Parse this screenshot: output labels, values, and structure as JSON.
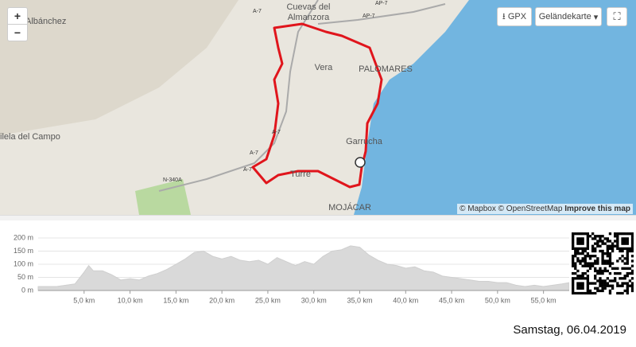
{
  "map": {
    "places": [
      "Albánchez",
      "Cuevas del",
      "Almanzora",
      "Vera",
      "Garrucha",
      "ilela del Campo",
      "Turre",
      "PALOMARES",
      "MOJÁCAR"
    ],
    "roads": [
      "A-7",
      "AP-7",
      "AP-7",
      "A-7",
      "A-7",
      "A-7",
      "N-340A"
    ],
    "zoom_in": "+",
    "zoom_out": "−",
    "gpx_button": "GPX",
    "map_type_button": "Geländekarte",
    "attribution": [
      "© Mapbox",
      "© OpenStreetMap",
      "Improve this map"
    ]
  },
  "elevation": {
    "yticks": [
      {
        "value": 0,
        "label": "0 m"
      },
      {
        "value": 50,
        "label": "50 m"
      },
      {
        "value": 100,
        "label": "100 m"
      },
      {
        "value": 150,
        "label": "150 m"
      },
      {
        "value": 200,
        "label": "200 m"
      }
    ],
    "xticks": [
      {
        "value": 5,
        "label": "5,0 km"
      },
      {
        "value": 10,
        "label": "10,0 km"
      },
      {
        "value": 15,
        "label": "15,0 km"
      },
      {
        "value": 20,
        "label": "20,0 km"
      },
      {
        "value": 25,
        "label": "25,0 km"
      },
      {
        "value": 30,
        "label": "30,0 km"
      },
      {
        "value": 35,
        "label": "35,0 km"
      },
      {
        "value": 40,
        "label": "40,0 km"
      },
      {
        "value": 45,
        "label": "45,0 km"
      },
      {
        "value": 50,
        "label": "50,0 km"
      },
      {
        "value": 55,
        "label": "55,0 km"
      }
    ],
    "xlim": [
      0,
      57.8
    ],
    "ylim": [
      0,
      200
    ],
    "x": [
      0,
      2,
      4,
      5,
      5.5,
      6,
      7,
      8,
      9,
      10,
      11,
      12,
      13,
      14,
      15,
      16,
      17,
      18,
      19,
      20,
      21,
      22,
      23,
      24,
      25,
      26,
      27,
      28,
      29,
      30,
      31,
      32,
      33,
      34,
      35,
      36,
      37,
      38,
      39,
      40,
      41,
      42,
      43,
      44,
      45,
      46,
      47,
      48,
      49,
      50,
      51,
      52,
      53,
      54,
      55,
      56,
      57,
      57.8
    ],
    "values": [
      15,
      15,
      25,
      70,
      95,
      75,
      75,
      60,
      40,
      45,
      40,
      55,
      65,
      80,
      100,
      120,
      145,
      150,
      130,
      120,
      130,
      115,
      110,
      115,
      100,
      125,
      110,
      95,
      110,
      100,
      130,
      150,
      155,
      170,
      165,
      135,
      115,
      100,
      95,
      85,
      90,
      75,
      70,
      55,
      50,
      45,
      40,
      35,
      35,
      30,
      30,
      20,
      15,
      20,
      15,
      20,
      25,
      30
    ]
  },
  "date": "Samstag, 06.04.2019"
}
